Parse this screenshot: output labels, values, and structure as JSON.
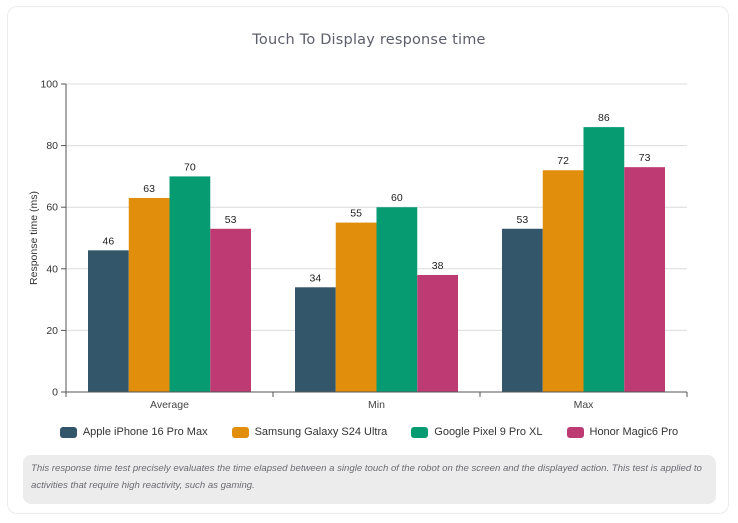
{
  "chart_data": {
    "type": "bar",
    "title": "Touch To Display response time",
    "xlabel": "",
    "ylabel": "Response time (ms)",
    "ylim": [
      0,
      100
    ],
    "yticks": [
      0,
      20,
      40,
      60,
      80,
      100
    ],
    "grid": true,
    "legend_position": "bottom",
    "categories": [
      "Average",
      "Min",
      "Max"
    ],
    "series": [
      {
        "name": "Apple iPhone 16 Pro Max",
        "color": "#34566b",
        "values": [
          46,
          34,
          53
        ]
      },
      {
        "name": "Samsung Galaxy S24 Ultra",
        "color": "#e08e0b",
        "values": [
          63,
          55,
          72
        ]
      },
      {
        "name": "Google Pixel 9 Pro XL",
        "color": "#079b72",
        "values": [
          70,
          60,
          86
        ]
      },
      {
        "name": "Honor Magic6 Pro",
        "color": "#bd3a72",
        "values": [
          53,
          38,
          73
        ]
      }
    ]
  },
  "note": "This response time test precisely evaluates the time elapsed between a single touch of the robot on the screen and the displayed action. This test is applied to activities that require high reactivity, such as gaming."
}
